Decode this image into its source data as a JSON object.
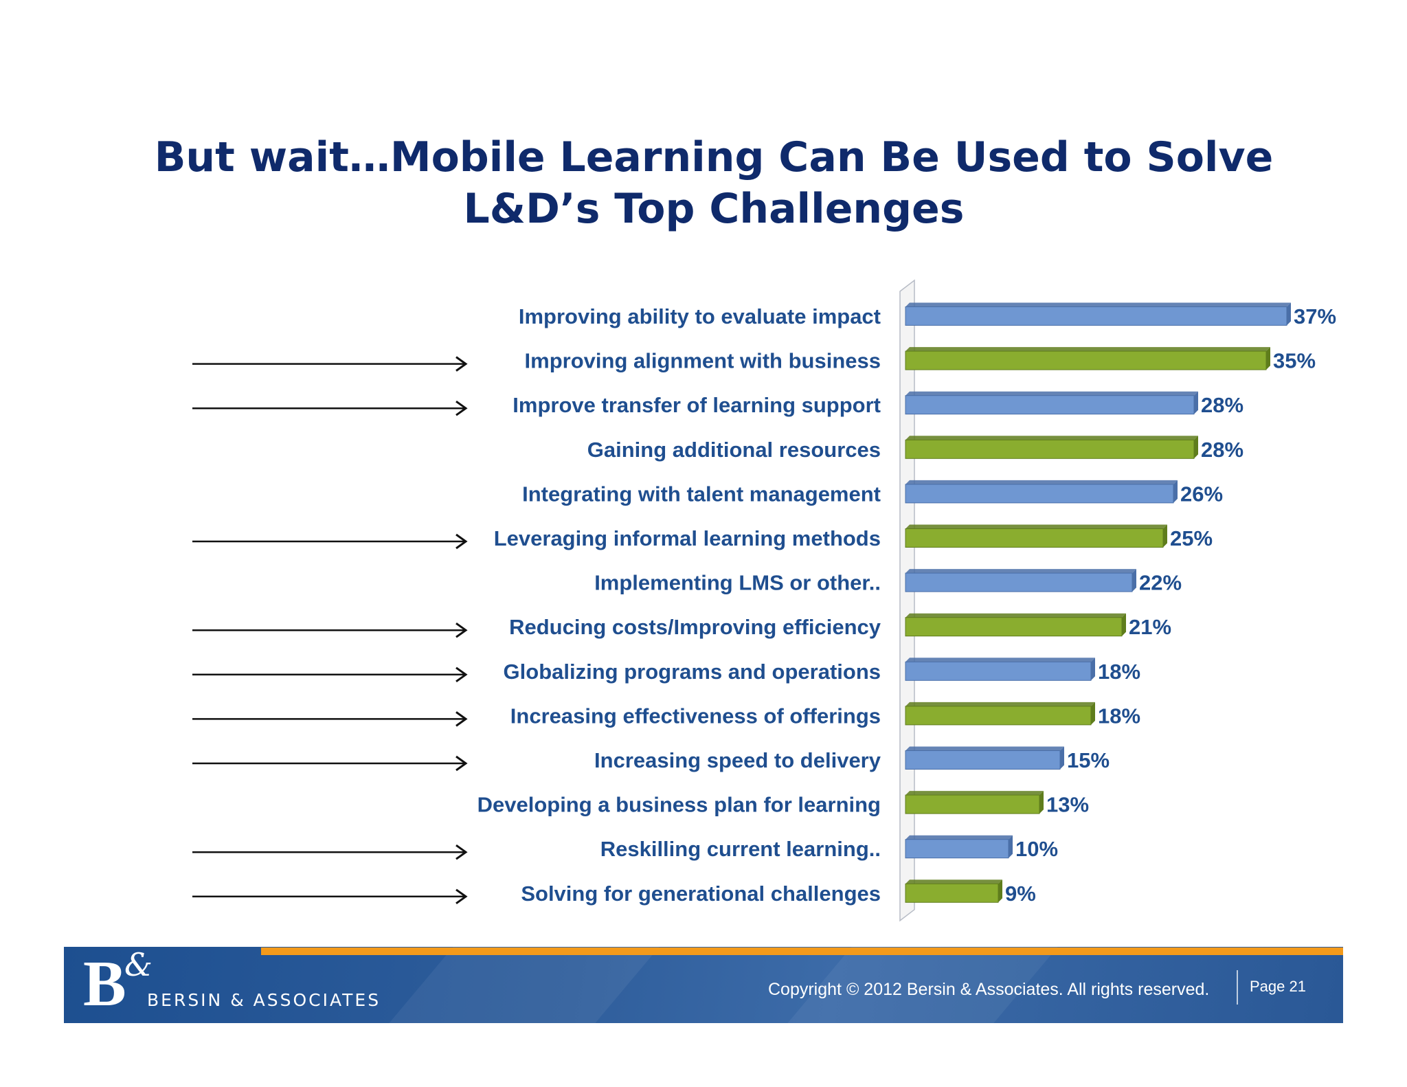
{
  "title": {
    "line1": "But wait…Mobile Learning Can Be Used to Solve",
    "line2": "L&D’s Top Challenges"
  },
  "chart_data": {
    "type": "bar",
    "orientation": "horizontal",
    "grid": false,
    "legend": "none",
    "categories": [
      "Improving ability to evaluate impact",
      "Improving alignment with business",
      "Improve transfer of learning support",
      "Gaining additional resources",
      "Integrating with talent management",
      "Leveraging informal learning methods",
      "Implementing LMS or other..",
      "Reducing costs/Improving efficiency",
      "Globalizing programs and operations",
      "Increasing effectiveness of offerings",
      "Increasing speed to delivery",
      "Developing a business plan for learning",
      "Reskilling current learning..",
      "Solving for generational challenges"
    ],
    "values": [
      37,
      35,
      28,
      28,
      26,
      25,
      22,
      21,
      18,
      18,
      15,
      13,
      10,
      9
    ],
    "value_labels": [
      "37%",
      "35%",
      "28%",
      "28%",
      "26%",
      "25%",
      "22%",
      "21%",
      "18%",
      "18%",
      "15%",
      "13%",
      "10%",
      "9%"
    ],
    "unit": "%",
    "arrows": [
      false,
      true,
      true,
      false,
      false,
      true,
      false,
      true,
      true,
      true,
      true,
      false,
      true,
      true
    ],
    "colors": {
      "blue_bar": "#6f97d2",
      "blue_bar_edge": "#4a6fa8",
      "green_bar": "#8aad2f",
      "green_bar_edge": "#5f7d1c",
      "label_text": "#1f4e8f",
      "value_text": "#1f4e8f"
    }
  },
  "footer": {
    "logo_mark": "B",
    "logo_ampersand": "&",
    "logo_text": "BERSIN & ASSOCIATES",
    "copyright": "Copyright © 2012 Bersin & Associates. All rights reserved.",
    "page": "Page 21"
  }
}
